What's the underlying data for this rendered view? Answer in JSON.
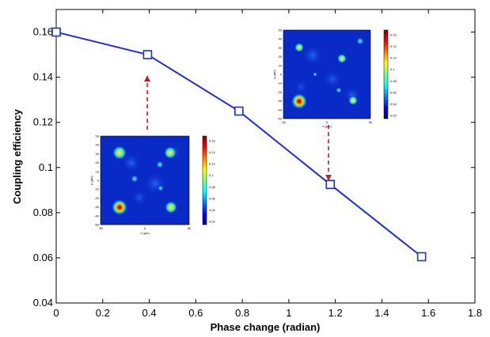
{
  "chart_data": {
    "type": "line",
    "xlabel": "Phase change (radian)",
    "ylabel": "Coupling efficiency",
    "xlim": [
      0,
      1.8
    ],
    "ylim": [
      0.04,
      0.17
    ],
    "xticks": [
      "0",
      "0.2",
      "0.4",
      "0.6",
      "0.8",
      "1",
      "1.2",
      "1.4",
      "1.6",
      "1.8"
    ],
    "yticks": [
      "0.04",
      "0.06",
      "0.08",
      "0.1",
      "0.12",
      "0.14",
      "0.16"
    ],
    "grid": false,
    "series": [
      {
        "marker": "square",
        "color": "#1f2fd0",
        "x": [
          0,
          0.3927,
          0.7854,
          1.1781,
          1.5708
        ],
        "y": [
          0.16,
          0.15,
          0.125,
          0.0925,
          0.0605
        ]
      }
    ],
    "annotations": [
      {
        "type": "heatmap-inset",
        "points_to": [
          0.3927,
          0.15
        ],
        "arrow_color": "#c0202a",
        "x_axis_label": "x (μm)",
        "y_axis_label": "y (μm)",
        "x_ticks": [
          "-50",
          "0",
          "50"
        ],
        "y_ticks": [
          "50",
          "40",
          "30",
          "20",
          "10",
          "0",
          "-10",
          "-20",
          "-30",
          "-40",
          "-50"
        ],
        "colorbar_ticks": [
          "0.16",
          "0.14",
          "0.12",
          "0.1",
          "0.08",
          "0.06",
          "0.04",
          "0.02"
        ]
      },
      {
        "type": "heatmap-inset",
        "points_to": [
          1.1781,
          0.0925
        ],
        "arrow_color": "#c0202a",
        "x_axis_label": "x (μm)",
        "y_axis_label": "y (μm)",
        "x_ticks": [
          "-50",
          "0",
          "50"
        ],
        "y_ticks": [
          "50",
          "40",
          "30",
          "20",
          "10",
          "0",
          "-10",
          "-20",
          "-30",
          "-40",
          "-50"
        ],
        "colorbar_ticks": [
          "0.16",
          "0.14",
          "0.12",
          "0.1",
          "0.08",
          "0.06",
          "0.04",
          "0.02"
        ]
      }
    ]
  }
}
